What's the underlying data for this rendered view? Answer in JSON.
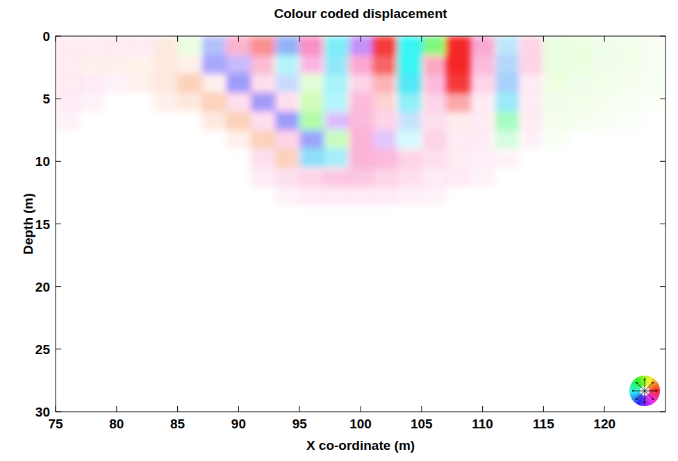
{
  "chart_data": {
    "type": "heatmap",
    "title": "Colour coded displacement",
    "x_label": "X co-ordinate (m)",
    "y_label": "Depth (m)",
    "xlim": [
      75,
      125
    ],
    "ylim": [
      0,
      30
    ],
    "xticks": [
      75,
      80,
      85,
      90,
      95,
      100,
      105,
      110,
      115,
      120
    ],
    "yticks": [
      0,
      5,
      10,
      15,
      20,
      25,
      30
    ],
    "x_edges": [
      75,
      77,
      79,
      81,
      83,
      85,
      87,
      89,
      91,
      93,
      95,
      97,
      99,
      101,
      103,
      105,
      107,
      109,
      111,
      113,
      115,
      117,
      119,
      121,
      123,
      125
    ],
    "depth_edges": [
      0,
      1.5,
      3,
      4.5,
      6,
      7.5,
      9,
      10.5,
      12,
      13.5
    ],
    "amplitude": [
      [
        0.1,
        0.1,
        0.1,
        0.1,
        0.15,
        0.15,
        0.35,
        0.35,
        0.5,
        0.5,
        0.5,
        0.6,
        0.5,
        0.9,
        0.9,
        0.6,
        1.0,
        0.4,
        0.3,
        0.2,
        0.15,
        0.12,
        0.1,
        0.08,
        0.05
      ],
      [
        0.1,
        0.1,
        0.1,
        0.08,
        0.15,
        0.1,
        0.4,
        0.3,
        0.3,
        0.35,
        0.35,
        0.5,
        0.4,
        0.7,
        0.9,
        0.4,
        1.0,
        0.3,
        0.35,
        0.2,
        0.15,
        0.12,
        0.1,
        0.08,
        0.05
      ],
      [
        0.1,
        0.08,
        0.05,
        0.1,
        0.15,
        0.3,
        0.1,
        0.45,
        0.15,
        0.25,
        0.2,
        0.4,
        0.2,
        0.35,
        0.8,
        0.3,
        0.9,
        0.2,
        0.4,
        0.1,
        0.12,
        0.1,
        0.08,
        0.06,
        0.04
      ],
      [
        0.08,
        0.05,
        0,
        0,
        0.1,
        0.15,
        0.3,
        0.15,
        0.45,
        0.15,
        0.3,
        0.35,
        0.3,
        0.2,
        0.5,
        0.2,
        0.4,
        0.1,
        0.45,
        0.1,
        0.1,
        0.08,
        0.06,
        0.04,
        0.03
      ],
      [
        0.05,
        0,
        0,
        0,
        0,
        0,
        0.15,
        0.3,
        0.15,
        0.45,
        0.4,
        0.3,
        0.3,
        0.2,
        0.25,
        0.15,
        0.1,
        0.1,
        0.4,
        0.1,
        0.08,
        0.06,
        0.04,
        0.03,
        0
      ],
      [
        0,
        0,
        0,
        0,
        0,
        0,
        0,
        0.1,
        0.3,
        0.2,
        0.45,
        0.3,
        0.35,
        0.25,
        0.2,
        0.2,
        0.1,
        0.08,
        0.2,
        0.06,
        0.04,
        0,
        0,
        0,
        0
      ],
      [
        0,
        0,
        0,
        0,
        0,
        0,
        0,
        0,
        0.15,
        0.3,
        0.5,
        0.4,
        0.35,
        0.3,
        0.2,
        0.15,
        0.1,
        0.06,
        0.05,
        0,
        0,
        0,
        0,
        0,
        0
      ],
      [
        0,
        0,
        0,
        0,
        0,
        0,
        0,
        0,
        0.08,
        0.15,
        0.2,
        0.25,
        0.25,
        0.2,
        0.15,
        0.1,
        0.08,
        0.05,
        0,
        0,
        0,
        0,
        0,
        0,
        0
      ],
      [
        0,
        0,
        0,
        0,
        0,
        0,
        0,
        0,
        0,
        0.05,
        0.08,
        0.08,
        0.08,
        0.08,
        0.06,
        0.05,
        0,
        0,
        0,
        0,
        0,
        0,
        0,
        0,
        0
      ]
    ],
    "direction": [
      [
        330,
        330,
        330,
        330,
        20,
        100,
        230,
        340,
        0,
        220,
        330,
        185,
        270,
        0,
        180,
        120,
        0,
        330,
        200,
        330,
        100,
        100,
        100,
        100,
        100
      ],
      [
        330,
        20,
        20,
        20,
        20,
        20,
        240,
        250,
        340,
        185,
        320,
        190,
        330,
        0,
        180,
        340,
        0,
        330,
        210,
        330,
        100,
        100,
        100,
        100,
        100
      ],
      [
        330,
        330,
        330,
        20,
        20,
        20,
        20,
        240,
        330,
        220,
        100,
        185,
        330,
        0,
        185,
        330,
        0,
        330,
        210,
        330,
        100,
        100,
        100,
        100,
        100
      ],
      [
        330,
        330,
        0,
        0,
        20,
        20,
        20,
        330,
        245,
        330,
        100,
        185,
        330,
        0,
        185,
        330,
        0,
        330,
        190,
        330,
        100,
        100,
        100,
        100,
        100
      ],
      [
        330,
        0,
        0,
        0,
        0,
        0,
        20,
        20,
        330,
        240,
        110,
        270,
        330,
        330,
        210,
        330,
        0,
        330,
        140,
        330,
        100,
        100,
        100,
        100,
        0
      ],
      [
        0,
        0,
        0,
        0,
        0,
        0,
        0,
        20,
        20,
        330,
        235,
        110,
        330,
        270,
        185,
        330,
        330,
        330,
        140,
        330,
        100,
        0,
        0,
        0,
        0
      ],
      [
        0,
        0,
        0,
        0,
        0,
        0,
        0,
        0,
        330,
        20,
        195,
        190,
        330,
        330,
        330,
        330,
        330,
        330,
        330,
        0,
        0,
        0,
        0,
        0,
        0
      ],
      [
        0,
        0,
        0,
        0,
        0,
        0,
        0,
        0,
        330,
        330,
        330,
        330,
        330,
        330,
        330,
        330,
        330,
        330,
        0,
        0,
        0,
        0,
        0,
        0,
        0
      ],
      [
        0,
        0,
        0,
        0,
        0,
        0,
        0,
        0,
        0,
        330,
        330,
        330,
        330,
        330,
        330,
        330,
        0,
        0,
        0,
        0,
        0,
        0,
        0,
        0,
        0
      ]
    ]
  }
}
